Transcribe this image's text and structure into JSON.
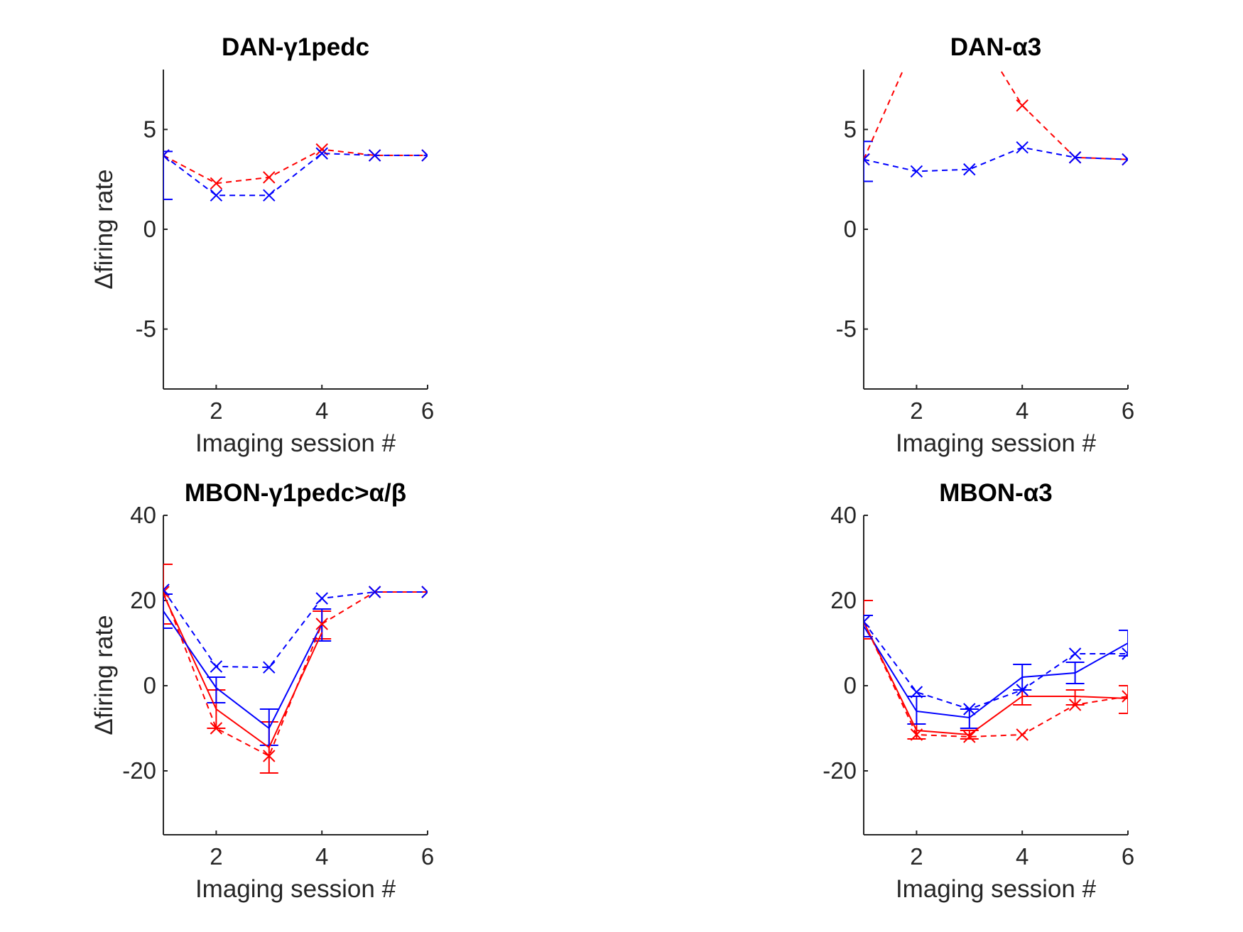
{
  "colors": {
    "blue": "#0000ff",
    "red": "#ff0000",
    "axis": "#262626"
  },
  "chart_data": [
    {
      "id": "p1",
      "type": "line",
      "title": "DAN-γ1pedc",
      "xlabel": "Imaging session #",
      "ylabel": "Δfiring rate",
      "xlim": [
        1,
        6
      ],
      "ylim": [
        -8,
        8
      ],
      "xticks": [
        2,
        4,
        6
      ],
      "xtick_labels": [
        "2",
        "4",
        "6"
      ],
      "yticks": [
        -5,
        0,
        5
      ],
      "ytick_labels": [
        "-5",
        "0",
        "5"
      ],
      "series": [
        {
          "color": "red",
          "dash": true,
          "marker": "x",
          "x": [
            1,
            2,
            3,
            4,
            5,
            6
          ],
          "y": [
            3.7,
            2.3,
            2.6,
            4.0,
            3.7,
            3.7
          ]
        },
        {
          "color": "blue",
          "dash": true,
          "marker": "x",
          "x": [
            1,
            2,
            3,
            4,
            5,
            6
          ],
          "y": [
            3.7,
            1.7,
            1.7,
            3.8,
            3.7,
            3.7
          ]
        }
      ],
      "errorbars": [
        {
          "color": "blue",
          "x": 1,
          "lo": 1.5,
          "hi": 3.9
        }
      ]
    },
    {
      "id": "p2",
      "type": "line",
      "title": "DAN-α3",
      "xlabel": "Imaging session #",
      "ylabel": "",
      "xlim": [
        1,
        6
      ],
      "ylim": [
        -8,
        8
      ],
      "xticks": [
        2,
        4,
        6
      ],
      "xtick_labels": [
        "2",
        "4",
        "6"
      ],
      "yticks": [
        -5,
        0,
        5
      ],
      "ytick_labels": [
        "-5",
        "0",
        "5"
      ],
      "series": [
        {
          "color": "red",
          "dash": true,
          "marker": "x",
          "x": [
            1,
            2,
            3,
            4,
            5,
            6
          ],
          "y": [
            3.5,
            9.5,
            10.5,
            6.2,
            3.6,
            3.5
          ]
        },
        {
          "color": "blue",
          "dash": true,
          "marker": "x",
          "x": [
            1,
            2,
            3,
            4,
            5,
            6
          ],
          "y": [
            3.5,
            2.9,
            3.0,
            4.1,
            3.6,
            3.5
          ]
        }
      ],
      "errorbars": [
        {
          "color": "blue",
          "x": 1,
          "lo": 2.4,
          "hi": 4.4
        }
      ]
    },
    {
      "id": "p3",
      "type": "line",
      "title": "MBON-γ1pedc>α/β",
      "xlabel": "Imaging session #",
      "ylabel": "Δfiring rate",
      "xlim": [
        1,
        6
      ],
      "ylim": [
        -35,
        40
      ],
      "xticks": [
        2,
        4,
        6
      ],
      "xtick_labels": [
        "2",
        "4",
        "6"
      ],
      "yticks": [
        -20,
        0,
        20,
        40
      ],
      "ytick_labels": [
        "-20",
        "0",
        "20",
        "40"
      ],
      "series": [
        {
          "color": "red",
          "dash": false,
          "marker": "none",
          "x": [
            1,
            2,
            3,
            4
          ],
          "y": [
            21.5,
            -5.5,
            -14.5,
            12.5
          ]
        },
        {
          "color": "blue",
          "dash": false,
          "marker": "none",
          "x": [
            1,
            2,
            3,
            4
          ],
          "y": [
            17.5,
            -0.5,
            -10.0,
            14.5
          ]
        },
        {
          "color": "red",
          "dash": true,
          "marker": "x",
          "x": [
            1,
            2,
            3,
            4,
            5,
            6
          ],
          "y": [
            22.0,
            -10.0,
            -16.5,
            14.5,
            22.0,
            22.0
          ]
        },
        {
          "color": "blue",
          "dash": true,
          "marker": "x",
          "x": [
            1,
            2,
            3,
            4,
            5,
            6
          ],
          "y": [
            22.5,
            4.5,
            4.3,
            20.5,
            22.0,
            22.0
          ]
        }
      ],
      "errorbars": [
        {
          "color": "red",
          "x": 1,
          "lo": 14.5,
          "hi": 28.5
        },
        {
          "color": "blue",
          "x": 1,
          "lo": 13.5,
          "hi": 21.5
        },
        {
          "color": "red",
          "x": 2,
          "lo": -10.0,
          "hi": -1.0
        },
        {
          "color": "blue",
          "x": 2,
          "lo": -4.0,
          "hi": 2.0
        },
        {
          "color": "red",
          "x": 3,
          "lo": -20.5,
          "hi": -8.5
        },
        {
          "color": "blue",
          "x": 3,
          "lo": -14.0,
          "hi": -5.5
        },
        {
          "color": "red",
          "x": 4,
          "lo": 11.0,
          "hi": 17.5
        },
        {
          "color": "blue",
          "x": 4,
          "lo": 10.5,
          "hi": 18.0
        }
      ]
    },
    {
      "id": "p4",
      "type": "line",
      "title": "MBON-α3",
      "xlabel": "Imaging session #",
      "ylabel": "",
      "xlim": [
        1,
        6
      ],
      "ylim": [
        -35,
        40
      ],
      "xticks": [
        2,
        4,
        6
      ],
      "xtick_labels": [
        "2",
        "4",
        "6"
      ],
      "yticks": [
        -20,
        0,
        20,
        40
      ],
      "ytick_labels": [
        "-20",
        "0",
        "20",
        "40"
      ],
      "series": [
        {
          "color": "red",
          "dash": false,
          "marker": "none",
          "x": [
            1,
            2,
            3,
            4,
            5,
            6
          ],
          "y": [
            15.0,
            -10.5,
            -11.5,
            -2.5,
            -2.5,
            -3.0
          ]
        },
        {
          "color": "blue",
          "dash": false,
          "marker": "none",
          "x": [
            1,
            2,
            3,
            4,
            5,
            6
          ],
          "y": [
            14.0,
            -6.0,
            -7.5,
            2.0,
            3.0,
            10.0
          ]
        },
        {
          "color": "red",
          "dash": true,
          "marker": "x",
          "x": [
            1,
            2,
            3,
            4,
            5,
            6
          ],
          "y": [
            15.0,
            -11.5,
            -12.0,
            -11.5,
            -4.5,
            -2.5
          ]
        },
        {
          "color": "blue",
          "dash": true,
          "marker": "x",
          "x": [
            1,
            2,
            3,
            4,
            5,
            6
          ],
          "y": [
            15.0,
            -1.5,
            -5.5,
            -1.0,
            7.5,
            7.5
          ]
        }
      ],
      "errorbars": [
        {
          "color": "red",
          "x": 1,
          "lo": 11.0,
          "hi": 20.0
        },
        {
          "color": "blue",
          "x": 1,
          "lo": 11.5,
          "hi": 16.5
        },
        {
          "color": "red",
          "x": 2,
          "lo": -12.5,
          "hi": -9.0
        },
        {
          "color": "blue",
          "x": 2,
          "lo": -9.0,
          "hi": -2.5
        },
        {
          "color": "red",
          "x": 3,
          "lo": -12.5,
          "hi": -10.5
        },
        {
          "color": "blue",
          "x": 3,
          "lo": -10.0,
          "hi": -5.5
        },
        {
          "color": "red",
          "x": 4,
          "lo": -4.5,
          "hi": -1.0
        },
        {
          "color": "blue",
          "x": 4,
          "lo": -1.0,
          "hi": 5.0
        },
        {
          "color": "red",
          "x": 5,
          "lo": -4.5,
          "hi": -1.0
        },
        {
          "color": "blue",
          "x": 5,
          "lo": 0.5,
          "hi": 5.5
        },
        {
          "color": "red",
          "x": 6,
          "lo": -6.5,
          "hi": 0.0
        },
        {
          "color": "blue",
          "x": 6,
          "lo": 7.0,
          "hi": 13.0
        }
      ]
    }
  ]
}
